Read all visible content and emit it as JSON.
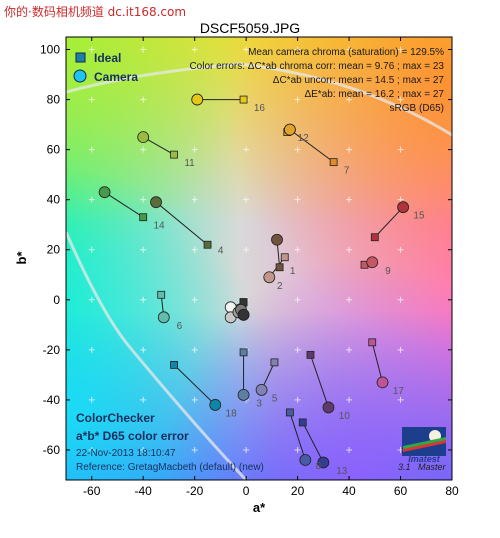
{
  "watermark": "你的·数码相机频道 dc.it168.com",
  "page_title": "DSCF5059.JPG",
  "legend": {
    "ideal": "Ideal",
    "camera": "Camera"
  },
  "stats": [
    "Mean camera chroma (saturation) = 129.5%",
    "Color errors: ΔC*ab chroma corr:  mean = 9.76 ;  max = 23",
    "ΔC*ab uncorr:  mean = 14.5 ;  max = 27",
    "ΔE*ab:  mean = 16.2 ;  max = 27",
    "sRGB (D65)"
  ],
  "footer": {
    "title1": "ColorChecker",
    "title2": "a*b* D65 color error",
    "date": "22-Nov-2013 18:10:47",
    "reference": "Reference: GretagMacbeth (default) (new)"
  },
  "logo": {
    "brand": "Imatest",
    "version": "3.1",
    "edition": "Master"
  },
  "chart_data": {
    "type": "scatter",
    "xlabel": "a*",
    "ylabel": "b*",
    "xlim": [
      -70,
      80
    ],
    "ylim": [
      -72,
      105
    ],
    "xticks": [
      "-60",
      "-40",
      "-20",
      "0",
      "20",
      "40",
      "60",
      "80"
    ],
    "yticks": [
      "-60",
      "-40",
      "-20",
      "0",
      "20",
      "40",
      "60",
      "80",
      "100"
    ],
    "grid": false,
    "legend_position": "top-left",
    "series": [
      {
        "name": "Ideal"
      },
      {
        "name": "Camera"
      }
    ],
    "patches": [
      {
        "id": "1",
        "ideal": [
          13,
          13
        ],
        "camera": [
          12,
          24
        ],
        "color": "#73523f"
      },
      {
        "id": "2",
        "ideal": [
          15,
          17
        ],
        "camera": [
          9,
          9
        ],
        "color": "#c2968a"
      },
      {
        "id": "3",
        "ideal": [
          -1,
          -21
        ],
        "camera": [
          -1,
          -38
        ],
        "color": "#5e7ea4"
      },
      {
        "id": "4",
        "ideal": [
          -15,
          22
        ],
        "camera": [
          -35,
          39
        ],
        "color": "#5a6c3b"
      },
      {
        "id": "5",
        "ideal": [
          11,
          -25
        ],
        "camera": [
          6,
          -36
        ],
        "color": "#8281b3"
      },
      {
        "id": "6",
        "ideal": [
          -33,
          2
        ],
        "camera": [
          -32,
          -7
        ],
        "color": "#62bcab"
      },
      {
        "id": "7",
        "ideal": [
          34,
          55
        ],
        "camera": [
          17,
          68
        ],
        "color": "#e08a2a"
      },
      {
        "id": "8",
        "ideal": [
          17,
          -45
        ],
        "camera": [
          23,
          -64
        ],
        "color": "#4a5ba5"
      },
      {
        "id": "9",
        "ideal": [
          46,
          14
        ],
        "camera": [
          49,
          15
        ],
        "color": "#c65863"
      },
      {
        "id": "10",
        "ideal": [
          25,
          -22
        ],
        "camera": [
          32,
          -43
        ],
        "color": "#5e3a6c"
      },
      {
        "id": "11",
        "ideal": [
          -28,
          58
        ],
        "camera": [
          -40,
          65
        ],
        "color": "#9cbc3f"
      },
      {
        "id": "12",
        "ideal": [
          16,
          67
        ],
        "camera": [
          17,
          68
        ],
        "color": "#e3a22a"
      },
      {
        "id": "13",
        "ideal": [
          22,
          -49
        ],
        "camera": [
          30,
          -65
        ],
        "color": "#343d91"
      },
      {
        "id": "14",
        "ideal": [
          -40,
          33
        ],
        "camera": [
          -55,
          43
        ],
        "color": "#479a4b"
      },
      {
        "id": "15",
        "ideal": [
          50,
          25
        ],
        "camera": [
          61,
          37
        ],
        "color": "#b0323c"
      },
      {
        "id": "16",
        "ideal": [
          -1,
          80
        ],
        "camera": [
          -19,
          80
        ],
        "color": "#e5c81a"
      },
      {
        "id": "17",
        "ideal": [
          49,
          -17
        ],
        "camera": [
          53,
          -33
        ],
        "color": "#bc5497"
      },
      {
        "id": "18",
        "ideal": [
          -28,
          -26
        ],
        "camera": [
          -12,
          -42
        ],
        "color": "#0f86a8"
      },
      {
        "id": "19",
        "ideal": [
          -1,
          -1
        ],
        "camera": [
          -6,
          -3
        ],
        "color": "#f3f3f2"
      },
      {
        "id": "20",
        "ideal": [
          -1,
          -1
        ],
        "camera": [
          -6,
          -7
        ],
        "color": "#c8c8c8"
      },
      {
        "id": "21",
        "ideal": [
          -1,
          -1
        ],
        "camera": [
          -3,
          -5
        ],
        "color": "#a0a0a0"
      },
      {
        "id": "22",
        "ideal": [
          -1,
          -1
        ],
        "camera": [
          -2,
          -4
        ],
        "color": "#7a7a79"
      },
      {
        "id": "23",
        "ideal": [
          -1,
          -1
        ],
        "camera": [
          -1,
          -6
        ],
        "color": "#555555"
      },
      {
        "id": "24",
        "ideal": [
          -1,
          -1
        ],
        "camera": [
          -1,
          -6
        ],
        "color": "#343434"
      }
    ],
    "labels": [
      {
        "text": "1",
        "at": [
          17,
          12
        ]
      },
      {
        "text": "2",
        "at": [
          12,
          6
        ]
      },
      {
        "text": "3",
        "at": [
          4,
          -41
        ]
      },
      {
        "text": "4",
        "at": [
          -11,
          20
        ]
      },
      {
        "text": "5",
        "at": [
          10,
          -39
        ]
      },
      {
        "text": "6",
        "at": [
          -27,
          -10
        ]
      },
      {
        "text": "7",
        "at": [
          38,
          52
        ]
      },
      {
        "text": "8",
        "at": [
          27,
          -66
        ]
      },
      {
        "text": "9",
        "at": [
          54,
          12
        ]
      },
      {
        "text": "10",
        "at": [
          36,
          -46
        ]
      },
      {
        "text": "11",
        "at": [
          -24,
          55
        ]
      },
      {
        "text": "12",
        "at": [
          20,
          65
        ]
      },
      {
        "text": "13",
        "at": [
          35,
          -68
        ]
      },
      {
        "text": "14",
        "at": [
          -36,
          30
        ]
      },
      {
        "text": "15",
        "at": [
          65,
          34
        ]
      },
      {
        "text": "16",
        "at": [
          3,
          77
        ]
      },
      {
        "text": "17",
        "at": [
          57,
          -36
        ]
      },
      {
        "text": "18",
        "at": [
          -8,
          -45
        ]
      }
    ]
  }
}
